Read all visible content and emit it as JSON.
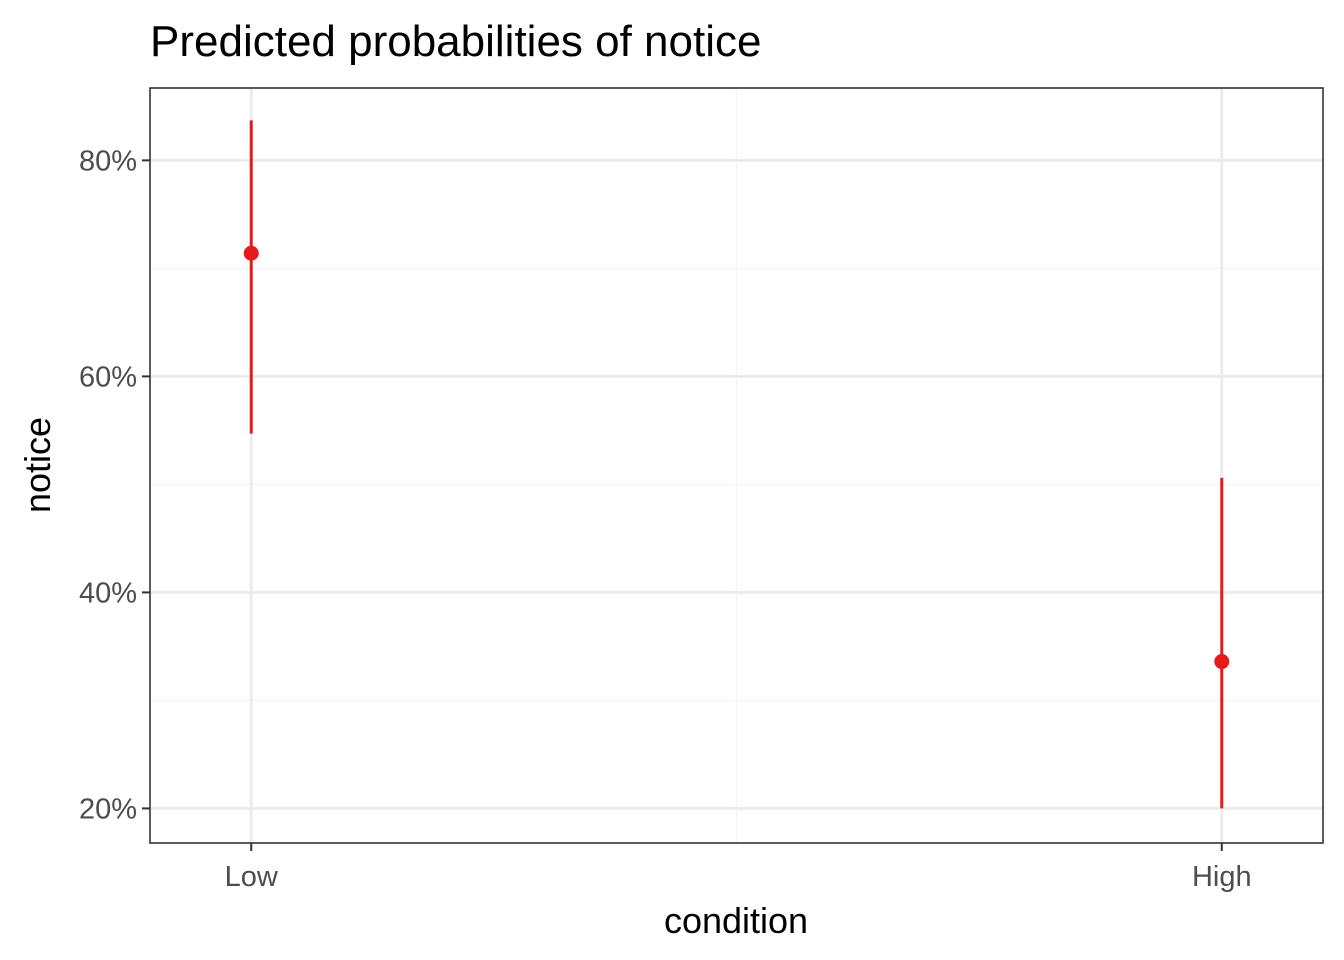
{
  "chart_data": {
    "type": "scatter",
    "title": "Predicted probabilities of notice",
    "xlabel": "condition",
    "ylabel": "notice",
    "categories": [
      "Low",
      "High"
    ],
    "series": [
      {
        "points": [
          {
            "x": "Low",
            "y": 0.714,
            "ymin": 0.547,
            "ymax": 0.837
          },
          {
            "x": "High",
            "y": 0.336,
            "ymin": 0.2,
            "ymax": 0.506
          }
        ]
      }
    ],
    "ylim": [
      0.168,
      0.867
    ],
    "yticks": [
      0.2,
      0.4,
      0.6,
      0.8
    ],
    "ytick_labels": [
      "20%",
      "40%",
      "60%",
      "80%"
    ],
    "grid": true,
    "legend": "none",
    "colors": {
      "point": "#e41a1c",
      "grid_major": "#ebebeb",
      "grid_minor": "#f5f5f5",
      "panel_border": "#333333",
      "tick_text": "#4d4d4d"
    }
  }
}
